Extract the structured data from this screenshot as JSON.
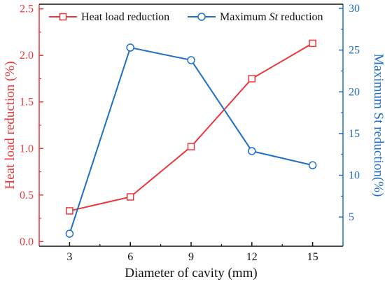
{
  "chart_data": {
    "type": "line",
    "x": [
      3,
      6,
      9,
      12,
      15
    ],
    "categories": [
      "3",
      "6",
      "9",
      "12",
      "15"
    ],
    "xlabel": "Diameter of cavity (mm)",
    "xlim": [
      1.5,
      16.5
    ],
    "left_axis": {
      "label": "Heat load reduction (%)",
      "ylim": [
        -0.05,
        2.55
      ],
      "ticks": [
        0.0,
        0.5,
        1.0,
        1.5,
        2.0,
        2.5
      ],
      "tick_labels": [
        "0.0",
        "0.5",
        "1.0",
        "1.5",
        "2.0",
        "2.5"
      ],
      "color": "#e8383b"
    },
    "right_axis": {
      "label": "Maximum St reduction(%)",
      "ylim": [
        1.5,
        30.5
      ],
      "ticks": [
        5,
        10,
        15,
        20,
        25,
        30
      ],
      "tick_labels": [
        "5",
        "10",
        "15",
        "20",
        "25",
        "30"
      ],
      "color": "#1f6fc5"
    },
    "series": [
      {
        "name": "Heat load reduction",
        "axis": "left",
        "marker": "square",
        "color": "#e8383b",
        "values": [
          0.33,
          0.48,
          1.02,
          1.75,
          2.13
        ]
      },
      {
        "name": "Maximum St reduction",
        "name_parts": [
          "Maximum ",
          "St",
          " reduction"
        ],
        "axis": "right",
        "marker": "circle",
        "color": "#1f6fc5",
        "values": [
          3.0,
          25.3,
          23.8,
          12.9,
          11.2
        ]
      }
    ],
    "legend": "top",
    "grid": false
  }
}
